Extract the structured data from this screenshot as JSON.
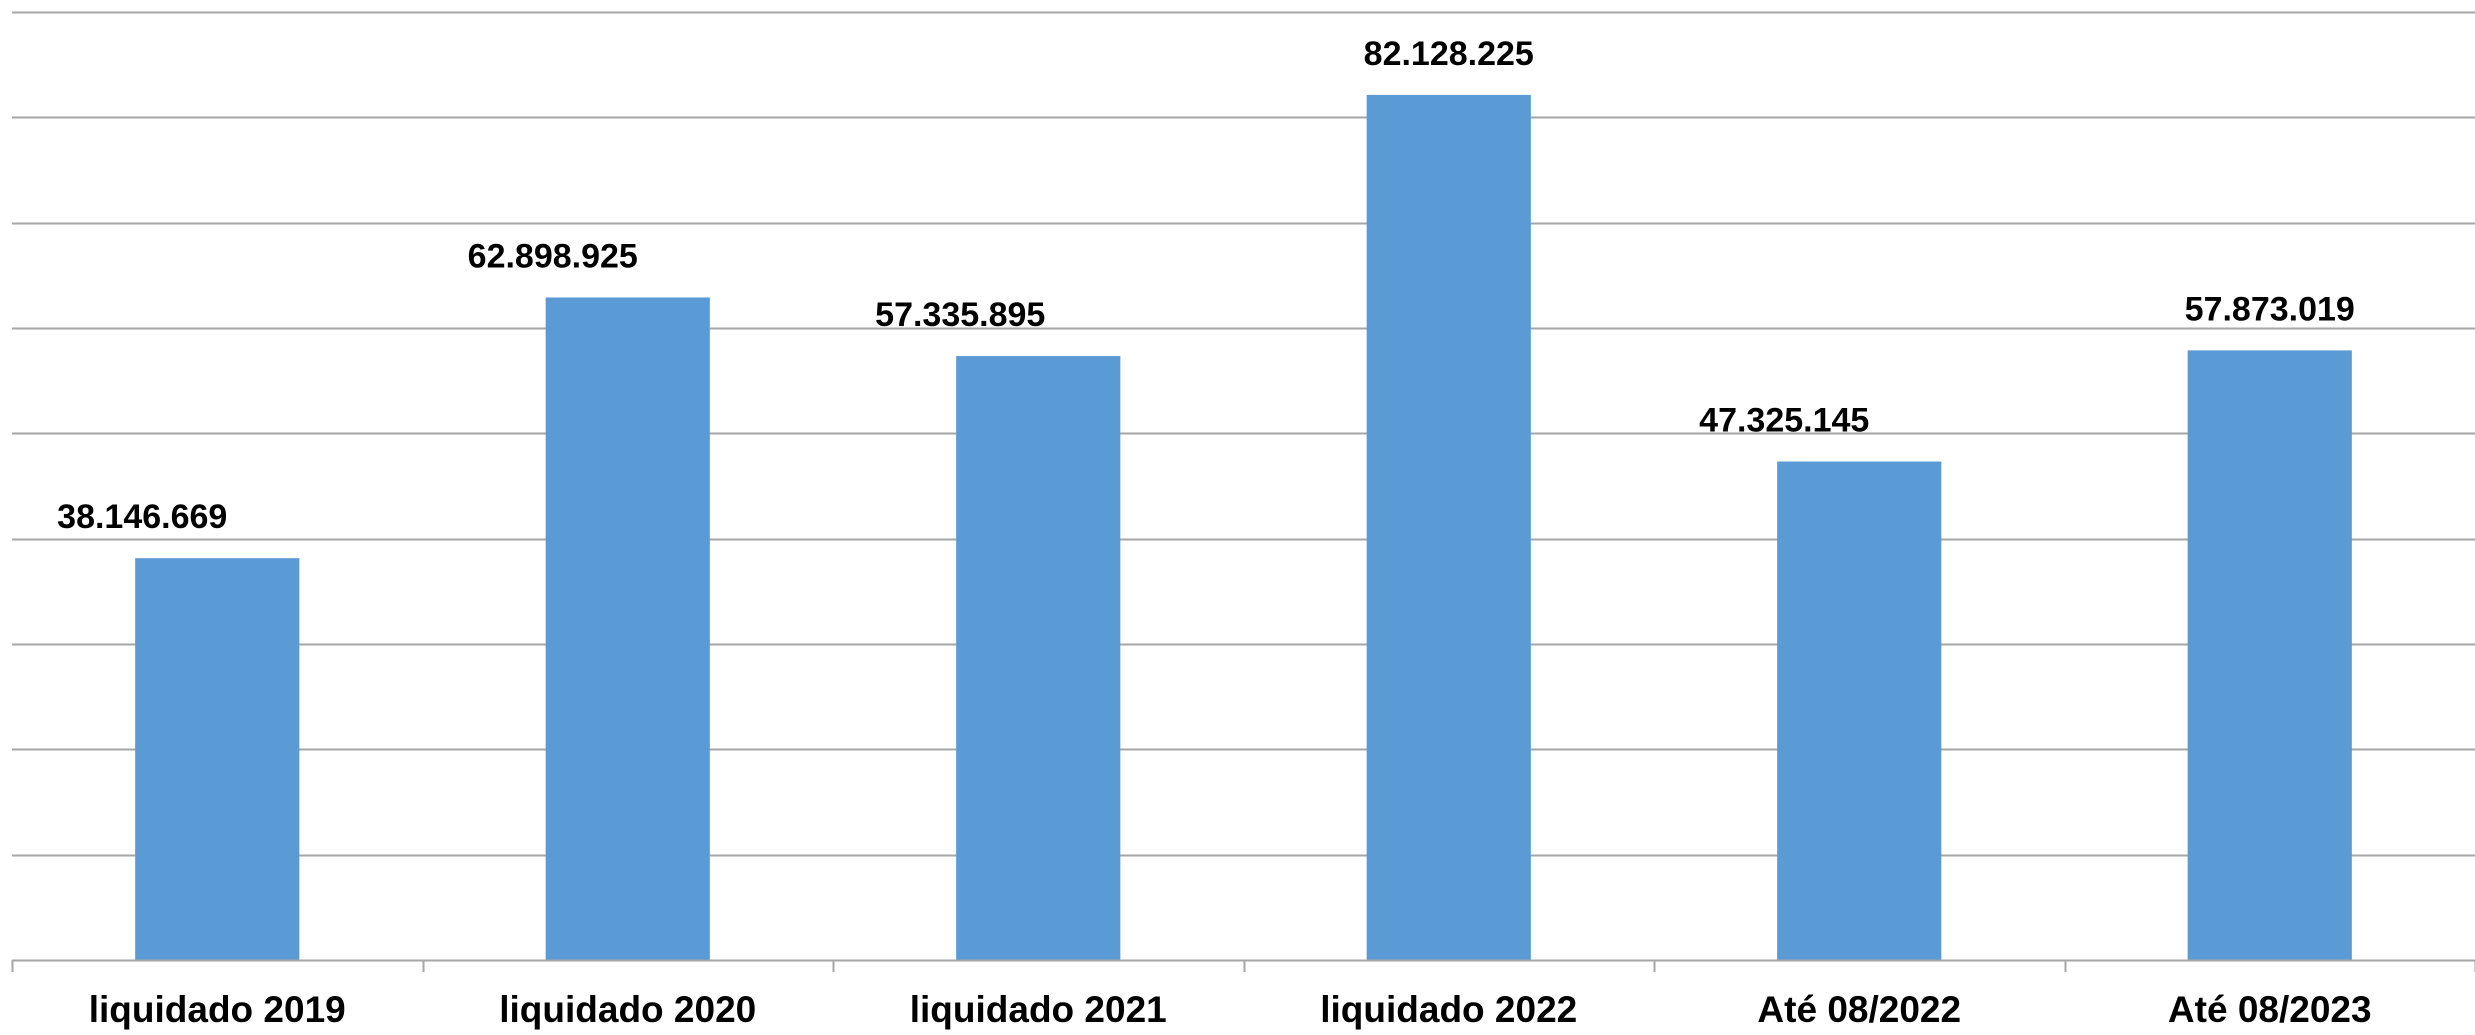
{
  "chart_data": {
    "type": "bar",
    "title": "",
    "xlabel": "",
    "ylabel": "",
    "categories": [
      "liquidado 2019",
      "liquidado 2020",
      "liquidado 2021",
      "liquidado 2022",
      "Até 08/2022",
      "Até 08/2023"
    ],
    "values": [
      38146669,
      62898925,
      57335895,
      82128225,
      47325145,
      57873019
    ],
    "data_labels": [
      "38.146.669",
      "62.898.925",
      "57.335.895",
      "82.128.225",
      "47.325.145",
      "57.873.019"
    ],
    "ylim": [
      0,
      90000000
    ],
    "grid": true,
    "legend": "none",
    "colors": {
      "bar": "#5b9bd5",
      "grid": "#a6a6a6",
      "axis": "#a6a6a6",
      "text": "#000000"
    }
  }
}
